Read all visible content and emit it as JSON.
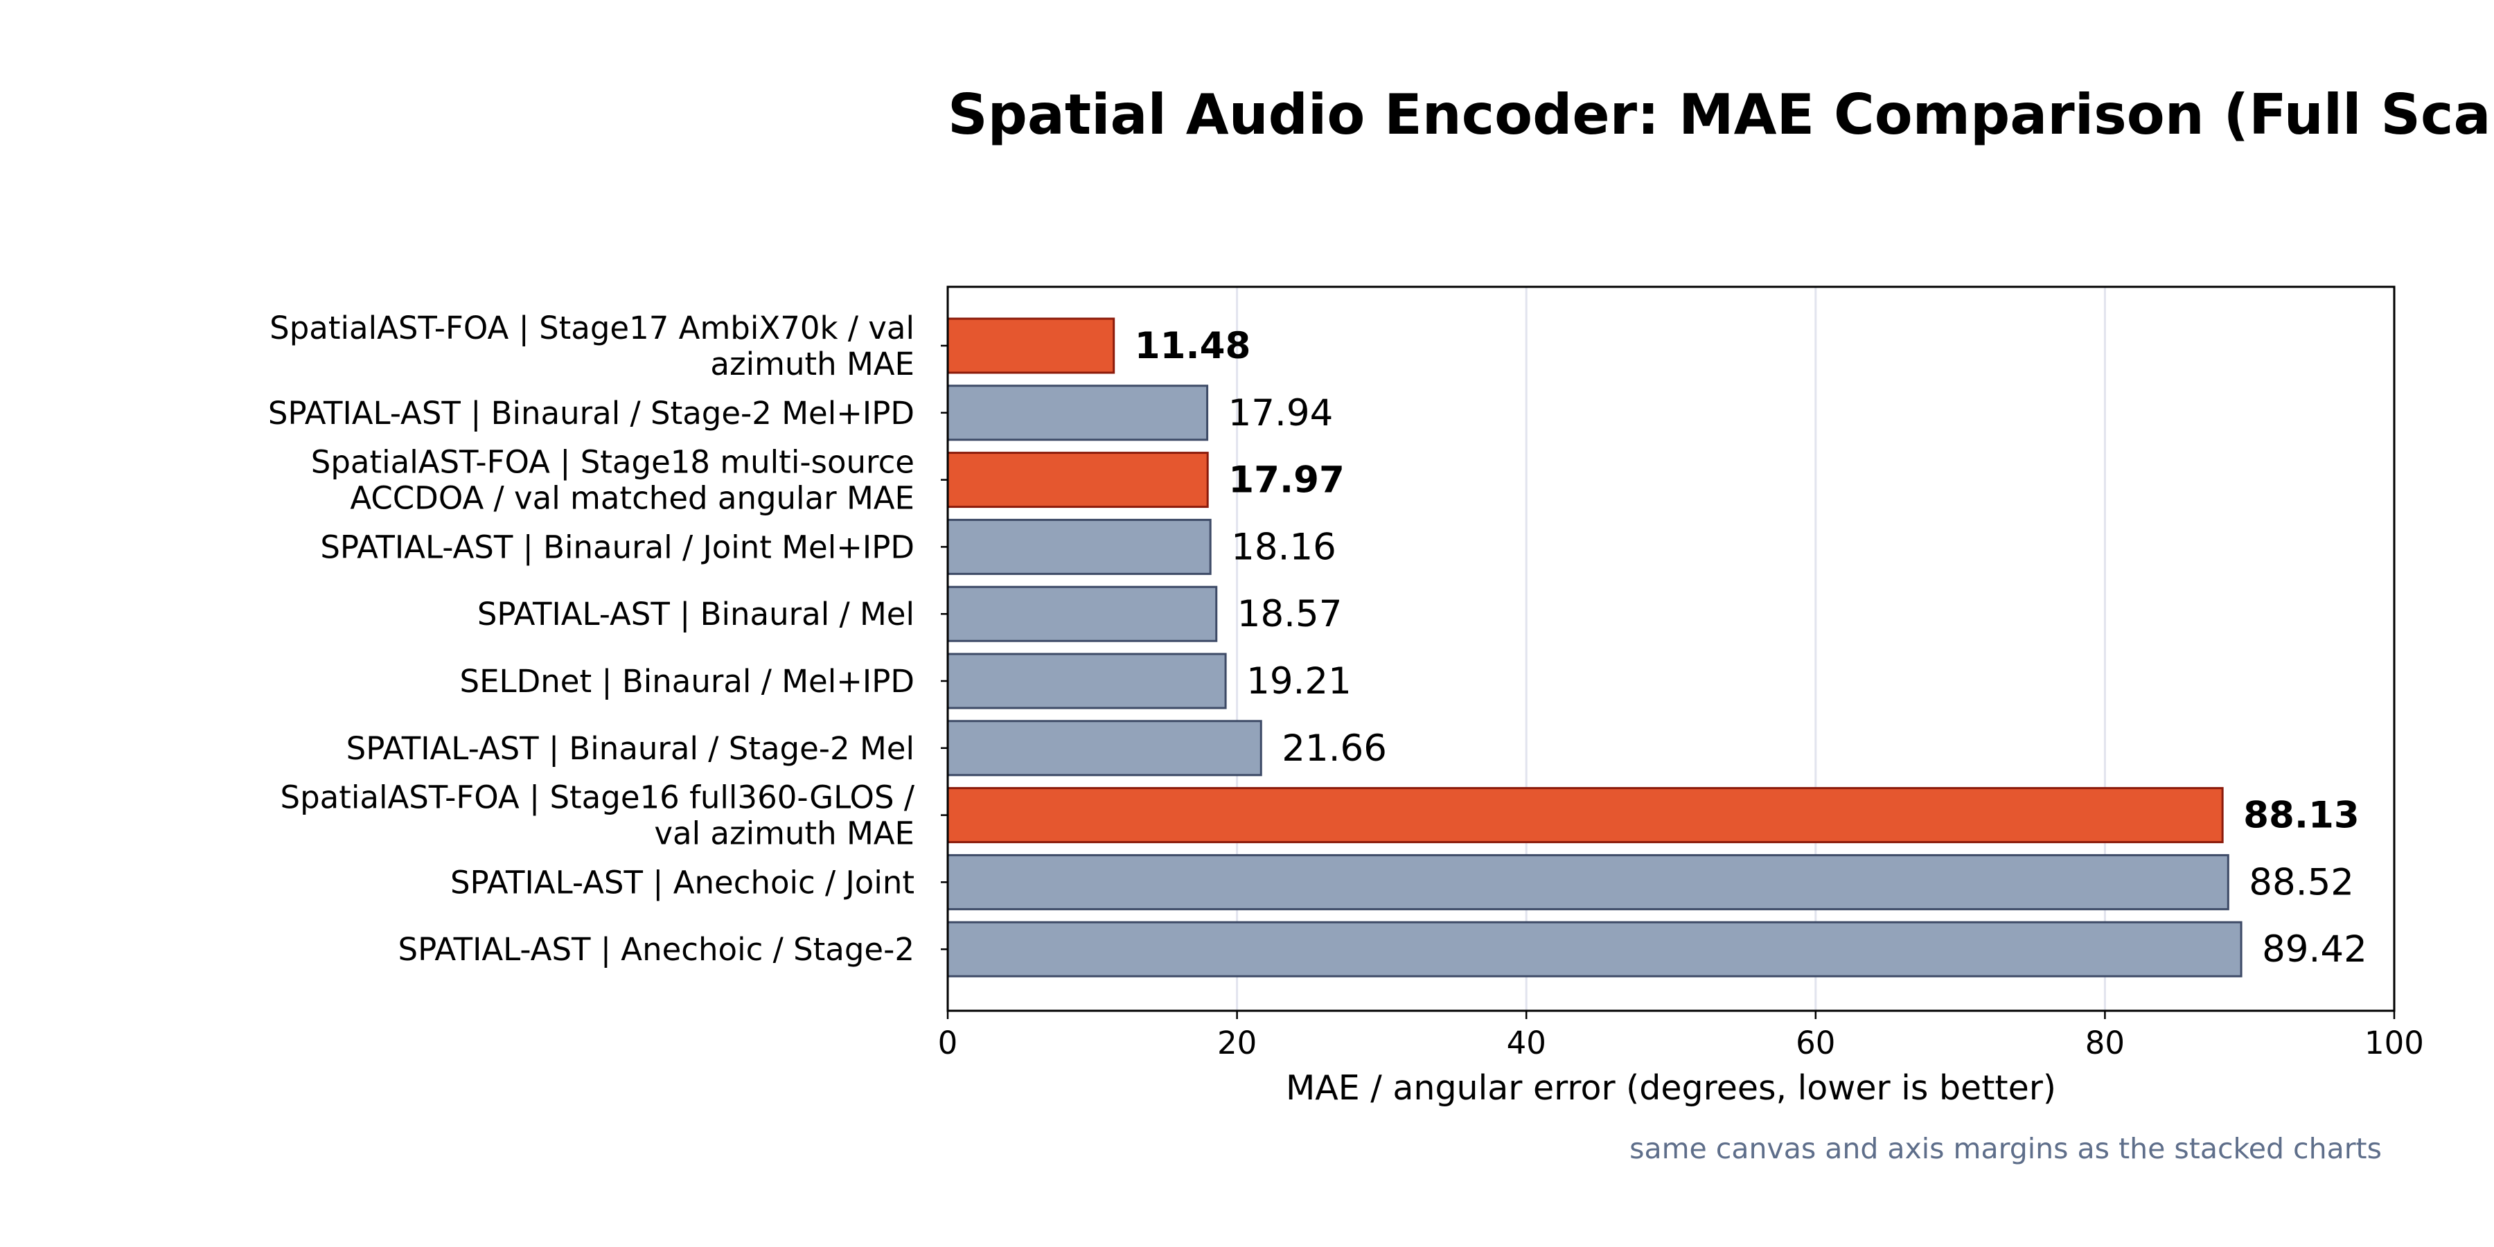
{
  "chart_data": {
    "type": "bar",
    "orientation": "horizontal",
    "title": "Spatial Audio Encoder: MAE Comparison (Full Scal",
    "xlabel": "MAE / angular error (degrees, lower is better)",
    "ylabel": "",
    "xlim": [
      0,
      100
    ],
    "xticks": [
      "0",
      "20",
      "40",
      "60",
      "80",
      "100"
    ],
    "grid": "vertical",
    "footnote": "same canvas and axis margins as the stacked charts",
    "categories": [
      [
        "SpatialAST-FOA | Stage17 AmbiX70k / val",
        "azimuth MAE"
      ],
      [
        "SPATIAL-AST | Binaural / Stage-2 Mel+IPD"
      ],
      [
        "SpatialAST-FOA | Stage18 multi-source",
        "ACCDOA / val matched angular MAE"
      ],
      [
        "SPATIAL-AST | Binaural / Joint Mel+IPD"
      ],
      [
        "SPATIAL-AST | Binaural / Mel"
      ],
      [
        "SELDnet | Binaural / Mel+IPD"
      ],
      [
        "SPATIAL-AST | Binaural / Stage-2 Mel"
      ],
      [
        "SpatialAST-FOA | Stage16 full360-GLOS /",
        "val azimuth MAE"
      ],
      [
        "SPATIAL-AST | Anechoic / Joint"
      ],
      [
        "SPATIAL-AST | Anechoic / Stage-2"
      ]
    ],
    "values": [
      11.48,
      17.94,
      17.97,
      18.16,
      18.57,
      19.21,
      21.66,
      88.13,
      88.52,
      89.42
    ],
    "value_labels": [
      "11.48",
      "17.94",
      "17.97",
      "18.16",
      "18.57",
      "19.21",
      "21.66",
      "88.13",
      "88.52",
      "89.42"
    ],
    "highlighted": [
      true,
      false,
      true,
      false,
      false,
      false,
      false,
      true,
      false,
      false
    ],
    "colors": {
      "highlight_fill": "#e5572f",
      "highlight_edge": "#8b1a0a",
      "baseline_fill": "#93a3ba",
      "baseline_edge": "#3d4a66",
      "grid": "#e2e4ee",
      "footnote": "#5e6e8a"
    }
  }
}
